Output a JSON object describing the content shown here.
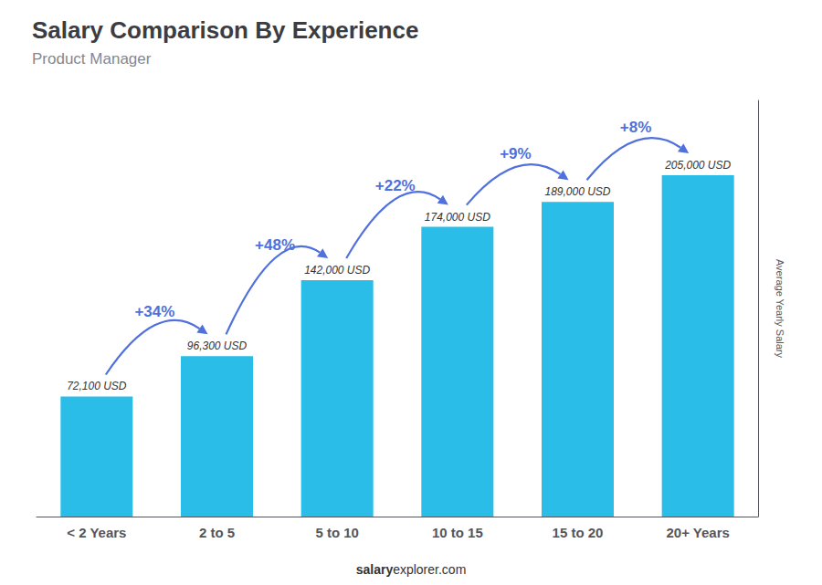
{
  "chart_data": {
    "type": "bar",
    "title": "Salary Comparison By Experience",
    "subtitle": "Product Manager",
    "ylabel": "Average Yearly Salary",
    "footer": [
      "salary",
      "explorer.com"
    ],
    "categories": [
      "< 2 Years",
      "2 to 5",
      "5 to 10",
      "10 to 15",
      "15 to 20",
      "20+ Years"
    ],
    "values": [
      72100,
      96300,
      142000,
      174000,
      189000,
      205000
    ],
    "value_labels": [
      "72,100 USD",
      "96,300 USD",
      "142,000 USD",
      "174,000 USD",
      "189,000 USD",
      "205,000 USD"
    ],
    "data_labels": true,
    "annotations": [
      "+34%",
      "+48%",
      "+22%",
      "+9%",
      "+8%"
    ],
    "color": "#29bde8",
    "ylim": [
      0,
      250000
    ],
    "grid": false,
    "tick_labels": "x"
  }
}
